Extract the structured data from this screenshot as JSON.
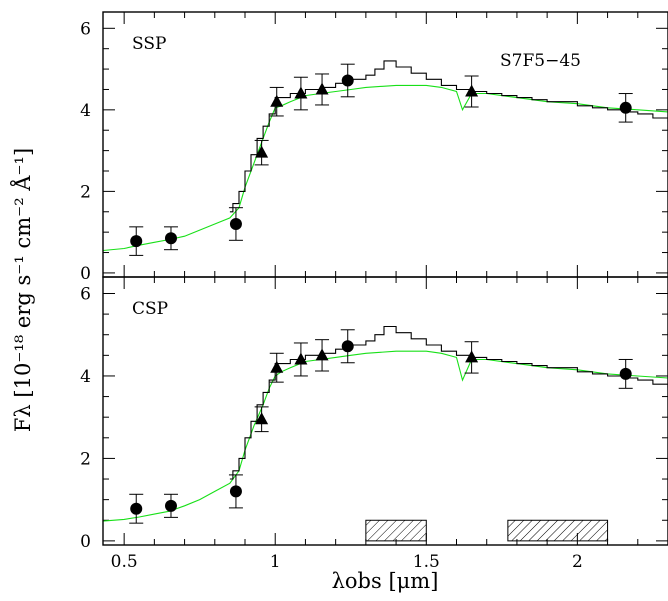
{
  "y_axis_label": "Fλ [10⁻¹⁸ erg s⁻¹ cm⁻² Å⁻¹]",
  "x_axis_label": "λobs [μm]",
  "object_label": "S7F5−45",
  "colors": {
    "model": "#18e018",
    "observed": "#000000"
  },
  "chart_data": [
    {
      "type": "line",
      "panel_label": "SSP",
      "xlim": [
        0.43,
        2.3
      ],
      "ylim": [
        -0.1,
        6.4
      ],
      "x_ticks": [
        0.5,
        1,
        1.5,
        2
      ],
      "x_tick_labels": [
        "0.5",
        "1",
        "1.5",
        "2"
      ],
      "y_ticks": [
        0,
        2,
        4,
        6
      ],
      "y_tick_labels": [
        "0",
        "2",
        "4",
        "6"
      ],
      "photometry": [
        {
          "x": 0.54,
          "y": 0.78,
          "err": 0.35,
          "marker": "circle"
        },
        {
          "x": 0.655,
          "y": 0.85,
          "err": 0.28,
          "marker": "circle"
        },
        {
          "x": 0.87,
          "y": 1.2,
          "err": 0.4,
          "marker": "circle"
        },
        {
          "x": 0.955,
          "y": 2.95,
          "err": 0.3,
          "marker": "triangle"
        },
        {
          "x": 1.005,
          "y": 4.2,
          "err": 0.35,
          "marker": "triangle"
        },
        {
          "x": 1.085,
          "y": 4.4,
          "err": 0.4,
          "marker": "triangle"
        },
        {
          "x": 1.155,
          "y": 4.5,
          "err": 0.38,
          "marker": "triangle"
        },
        {
          "x": 1.24,
          "y": 4.72,
          "err": 0.4,
          "marker": "circle"
        },
        {
          "x": 1.65,
          "y": 4.45,
          "err": 0.38,
          "marker": "triangle"
        },
        {
          "x": 2.16,
          "y": 4.05,
          "err": 0.35,
          "marker": "circle"
        }
      ],
      "observed_spectrum": {
        "x": [
          0.85,
          0.86,
          0.88,
          0.9,
          0.92,
          0.94,
          0.96,
          0.98,
          1.0,
          1.05,
          1.1,
          1.15,
          1.2,
          1.25,
          1.3,
          1.33,
          1.36,
          1.4,
          1.45,
          1.5,
          1.55,
          1.6,
          1.65,
          1.7,
          1.75,
          1.8,
          1.85,
          1.9,
          1.95,
          2.0,
          2.05,
          2.1,
          2.15,
          2.2,
          2.25,
          2.3
        ],
        "y": [
          1.5,
          1.7,
          2.0,
          2.5,
          2.9,
          3.3,
          3.6,
          3.9,
          4.3,
          4.4,
          4.5,
          4.55,
          4.65,
          4.75,
          4.85,
          5.0,
          5.2,
          5.05,
          4.9,
          4.75,
          4.6,
          4.5,
          4.45,
          4.4,
          4.35,
          4.3,
          4.25,
          4.2,
          4.2,
          4.1,
          4.05,
          4.0,
          3.95,
          3.9,
          3.8,
          3.7
        ]
      },
      "model_spectrum": {
        "x": [
          0.43,
          0.5,
          0.55,
          0.6,
          0.65,
          0.7,
          0.75,
          0.8,
          0.85,
          0.88,
          0.9,
          0.93,
          0.96,
          0.98,
          1.0,
          1.02,
          1.05,
          1.1,
          1.15,
          1.2,
          1.25,
          1.3,
          1.4,
          1.5,
          1.55,
          1.6,
          1.62,
          1.65,
          1.7,
          1.8,
          1.9,
          2.0,
          2.1,
          2.2,
          2.3
        ],
        "y": [
          0.55,
          0.6,
          0.68,
          0.75,
          0.82,
          0.9,
          1.05,
          1.2,
          1.35,
          1.6,
          2.1,
          2.7,
          3.3,
          3.7,
          4.05,
          4.1,
          4.2,
          4.35,
          4.4,
          4.45,
          4.5,
          4.55,
          4.6,
          4.6,
          4.55,
          4.45,
          4.0,
          4.4,
          4.4,
          4.3,
          4.2,
          4.15,
          4.05,
          4.0,
          3.95
        ]
      }
    },
    {
      "type": "line",
      "panel_label": "CSP",
      "xlim": [
        0.43,
        2.3
      ],
      "ylim": [
        -0.1,
        6.4
      ],
      "x_ticks": [
        0.5,
        1,
        1.5,
        2
      ],
      "x_tick_labels": [
        "0.5",
        "1",
        "1.5",
        "2"
      ],
      "y_ticks": [
        0,
        2,
        4,
        6
      ],
      "y_tick_labels": [
        "0",
        "2",
        "4",
        "6"
      ],
      "photometry": [
        {
          "x": 0.54,
          "y": 0.78,
          "err": 0.35,
          "marker": "circle"
        },
        {
          "x": 0.655,
          "y": 0.85,
          "err": 0.28,
          "marker": "circle"
        },
        {
          "x": 0.87,
          "y": 1.2,
          "err": 0.4,
          "marker": "circle"
        },
        {
          "x": 0.955,
          "y": 2.95,
          "err": 0.3,
          "marker": "triangle"
        },
        {
          "x": 1.005,
          "y": 4.2,
          "err": 0.35,
          "marker": "triangle"
        },
        {
          "x": 1.085,
          "y": 4.4,
          "err": 0.4,
          "marker": "triangle"
        },
        {
          "x": 1.155,
          "y": 4.5,
          "err": 0.38,
          "marker": "triangle"
        },
        {
          "x": 1.24,
          "y": 4.72,
          "err": 0.4,
          "marker": "circle"
        },
        {
          "x": 1.65,
          "y": 4.45,
          "err": 0.38,
          "marker": "triangle"
        },
        {
          "x": 2.16,
          "y": 4.05,
          "err": 0.35,
          "marker": "circle"
        }
      ],
      "observed_spectrum": {
        "x": [
          0.85,
          0.86,
          0.88,
          0.9,
          0.92,
          0.94,
          0.96,
          0.98,
          1.0,
          1.05,
          1.1,
          1.15,
          1.2,
          1.25,
          1.3,
          1.33,
          1.36,
          1.4,
          1.45,
          1.5,
          1.55,
          1.6,
          1.65,
          1.7,
          1.75,
          1.8,
          1.85,
          1.9,
          1.95,
          2.0,
          2.05,
          2.1,
          2.15,
          2.2,
          2.25,
          2.3
        ],
        "y": [
          1.5,
          1.7,
          2.0,
          2.5,
          2.9,
          3.3,
          3.6,
          3.9,
          4.3,
          4.4,
          4.5,
          4.55,
          4.65,
          4.75,
          4.85,
          5.0,
          5.2,
          5.05,
          4.9,
          4.75,
          4.6,
          4.5,
          4.45,
          4.4,
          4.35,
          4.3,
          4.25,
          4.2,
          4.2,
          4.1,
          4.05,
          4.0,
          3.95,
          3.9,
          3.8,
          3.7
        ]
      },
      "model_spectrum": {
        "x": [
          0.43,
          0.5,
          0.55,
          0.6,
          0.65,
          0.7,
          0.75,
          0.8,
          0.85,
          0.88,
          0.9,
          0.93,
          0.96,
          0.98,
          1.0,
          1.02,
          1.05,
          1.1,
          1.15,
          1.2,
          1.25,
          1.3,
          1.4,
          1.5,
          1.55,
          1.6,
          1.62,
          1.65,
          1.7,
          1.8,
          1.9,
          2.0,
          2.1,
          2.2,
          2.3
        ],
        "y": [
          0.48,
          0.52,
          0.58,
          0.65,
          0.72,
          0.85,
          1.0,
          1.2,
          1.4,
          1.7,
          2.2,
          2.8,
          3.3,
          3.7,
          4.0,
          4.1,
          4.2,
          4.35,
          4.4,
          4.45,
          4.5,
          4.55,
          4.6,
          4.6,
          4.55,
          4.45,
          3.9,
          4.4,
          4.4,
          4.3,
          4.2,
          4.15,
          4.05,
          4.0,
          3.95
        ]
      },
      "filter_bands": [
        {
          "x_start": 1.3,
          "x_end": 1.5
        },
        {
          "x_start": 1.77,
          "x_end": 2.1
        }
      ],
      "filter_band_height": 0.5
    }
  ]
}
